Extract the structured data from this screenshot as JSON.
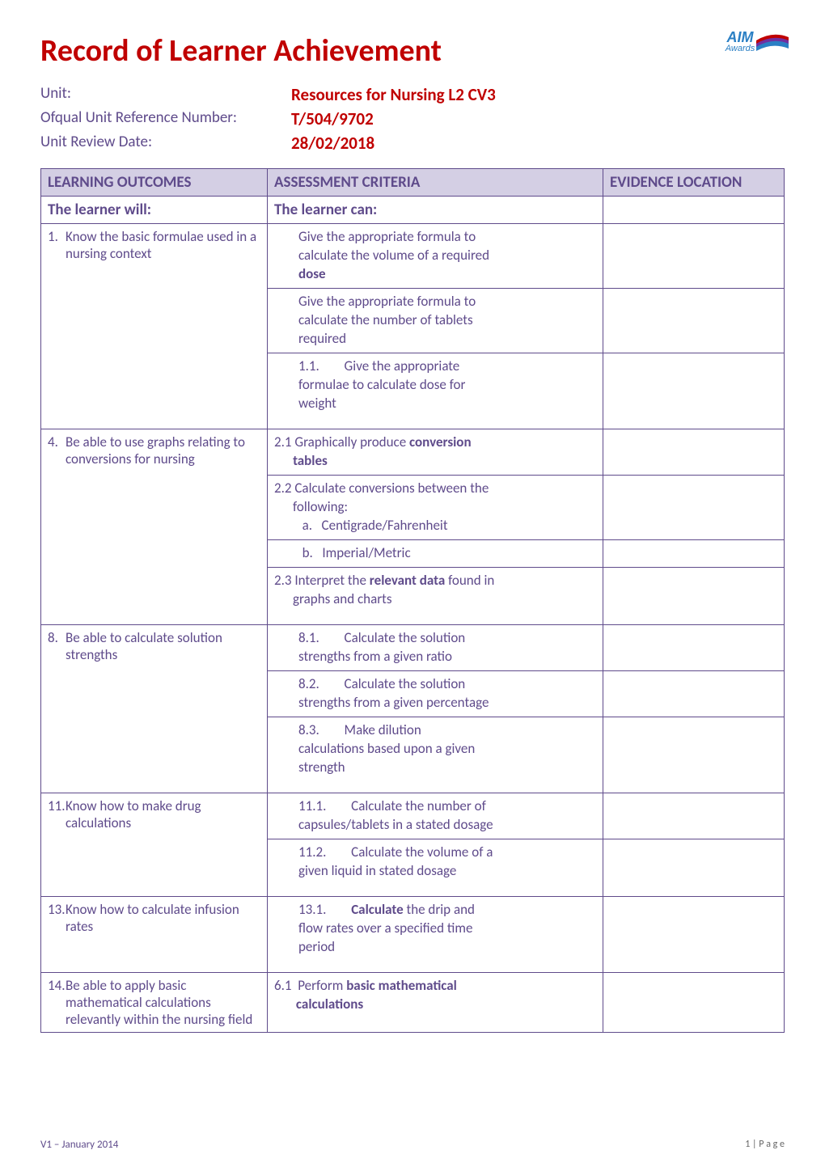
{
  "page_title": "Record of Learner Achievement",
  "logo": {
    "line1": "AIM",
    "line2": "Awards",
    "accent_colors": [
      "#c00000",
      "#7030a0",
      "#2a7fc4"
    ]
  },
  "header": {
    "rows": [
      {
        "label": "Unit:",
        "value": "Resources for Nursing L2 CV3"
      },
      {
        "label": "Ofqual Unit Reference Number:",
        "value": "T/504/9702"
      },
      {
        "label": "Unit Review Date:",
        "value": "28/02/2018"
      }
    ]
  },
  "table": {
    "headers": [
      "LEARNING OUTCOMES",
      "ASSESSMENT CRITERIA",
      "EVIDENCE LOCATION"
    ],
    "subheaders": [
      "The learner will:",
      "The learner can:",
      ""
    ],
    "colors": {
      "header_bg": "#d4cfe4",
      "border": "#5f4b8b",
      "text": "#5f4b8b"
    },
    "rows": [
      {
        "outcome_num": "1.",
        "outcome": "Know the basic formulae used in a nursing context",
        "criteria_groups": [
          {
            "lines": [
              "Give the appropriate formula to",
              "calculate the volume of a required",
              "<b>dose</b>"
            ]
          },
          {
            "lines": [
              "Give the appropriate formula to",
              "calculate the number of tablets",
              "required"
            ]
          },
          {
            "lines": [
              "1.1.&nbsp;&nbsp;&nbsp;&nbsp;&nbsp;&nbsp;&nbsp;&nbsp;Give the appropriate",
              "formulae to calculate dose for",
              "weight"
            ]
          }
        ]
      },
      {
        "outcome_num": "4.",
        "outcome": "Be able to use graphs relating to conversions for nursing",
        "criteria_groups": [
          {
            "lines": [
              "2.1 Graphically produce <b>conversion</b>",
              "&nbsp;&nbsp;&nbsp;&nbsp;&nbsp;&nbsp;<b>tables</b>"
            ],
            "nopad": true
          },
          {
            "lines": [
              "2.2 Calculate  conversions between the",
              "&nbsp;&nbsp;&nbsp;&nbsp;&nbsp;&nbsp;following:",
              "&nbsp;&nbsp;&nbsp;&nbsp;&nbsp;&nbsp;&nbsp;&nbsp;&nbsp;a.&nbsp;&nbsp;&nbsp;Centigrade/Fahrenheit"
            ],
            "nopad": true
          },
          {
            "lines": [
              "&nbsp;&nbsp;&nbsp;&nbsp;&nbsp;&nbsp;&nbsp;&nbsp;&nbsp;b.&nbsp;&nbsp;&nbsp;Imperial/Metric"
            ],
            "nopad": true
          },
          {
            "lines": [
              "2.3 Interpret the <b>relevant data</b> found in",
              "&nbsp;&nbsp;&nbsp;&nbsp;&nbsp;&nbsp;graphs and charts"
            ],
            "nopad": true
          }
        ]
      },
      {
        "outcome_num": "8.",
        "outcome": "Be able to calculate solution strengths",
        "criteria_groups": [
          {
            "lines": [
              "8.1.&nbsp;&nbsp;&nbsp;&nbsp;&nbsp;&nbsp;&nbsp;&nbsp;Calculate the solution",
              "strengths from a given ratio"
            ]
          },
          {
            "lines": [
              "8.2.&nbsp;&nbsp;&nbsp;&nbsp;&nbsp;&nbsp;&nbsp;&nbsp;Calculate the solution",
              "strengths from a given percentage"
            ]
          },
          {
            "lines": [
              "8.3.&nbsp;&nbsp;&nbsp;&nbsp;&nbsp;&nbsp;&nbsp;&nbsp;Make dilution",
              "calculations based upon a given",
              "strength"
            ]
          }
        ]
      },
      {
        "outcome_num": "11.",
        "outcome": "Know how to make drug calculations",
        "criteria_groups": [
          {
            "lines": [
              "11.1.&nbsp;&nbsp;&nbsp;&nbsp;&nbsp;&nbsp;&nbsp;&nbsp;Calculate the number of",
              "capsules/tablets in a stated dosage"
            ]
          },
          {
            "lines": [
              "11.2.&nbsp;&nbsp;&nbsp;&nbsp;&nbsp;&nbsp;&nbsp;&nbsp;Calculate the volume of a",
              "given liquid in stated dosage"
            ]
          }
        ]
      },
      {
        "outcome_num": "13.",
        "outcome": "Know how to calculate infusion rates",
        "criteria_groups": [
          {
            "lines": [
              "13.1.&nbsp;&nbsp;&nbsp;&nbsp;&nbsp;&nbsp;&nbsp;&nbsp;<b>Calculate</b> the drip and",
              "flow rates over a specified time",
              "period"
            ]
          }
        ]
      },
      {
        "outcome_num": "14.",
        "outcome": "Be able to apply basic mathematical calculations relevantly within the nursing field",
        "criteria_groups": [
          {
            "lines": [
              "6.1&nbsp;&nbsp;Perform <b>basic mathematical</b>",
              "&nbsp;&nbsp;&nbsp;&nbsp;&nbsp;&nbsp;&nbsp;<b>calculations</b>"
            ],
            "nopad": true
          }
        ]
      }
    ]
  },
  "footer": {
    "left": "V1 – January 2014",
    "right": "1 | P a g e"
  }
}
